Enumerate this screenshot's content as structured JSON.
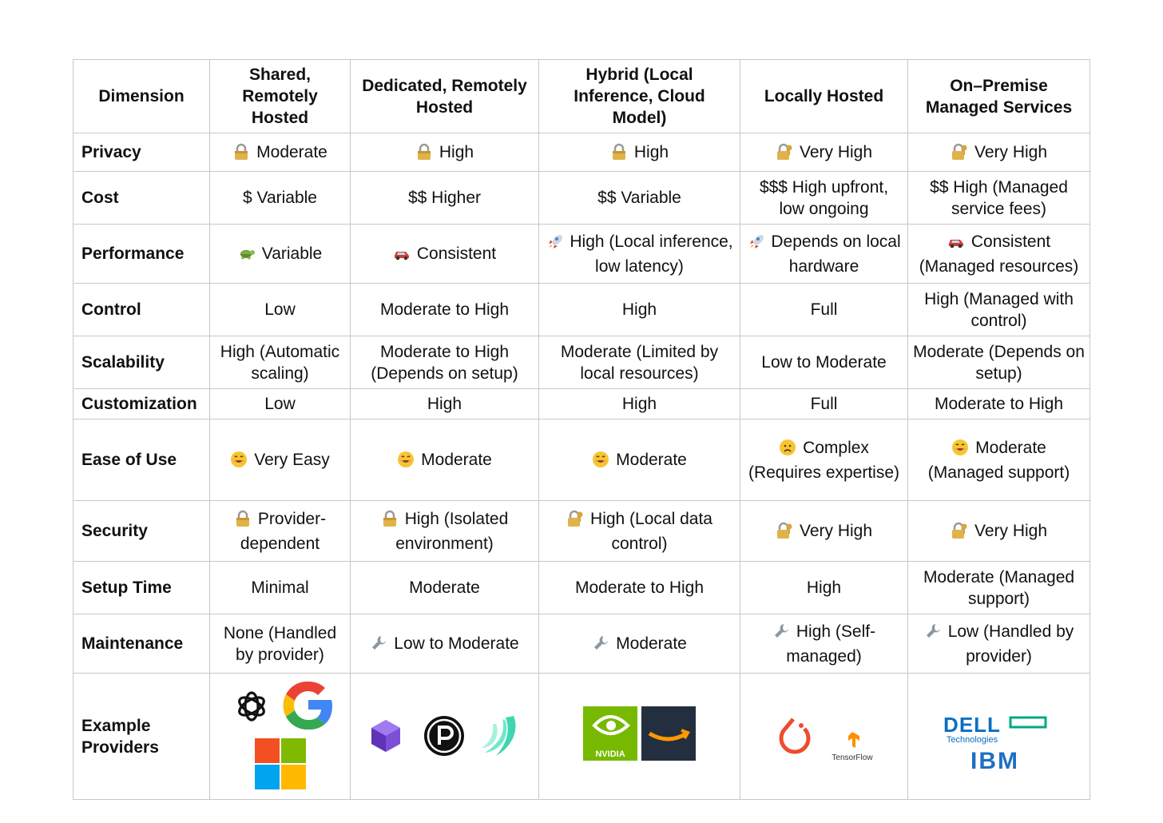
{
  "table": {
    "headers": [
      "Dimension",
      "Shared, Remotely Hosted",
      "Dedicated, Remotely Hosted",
      "Hybrid (Local Inference, Cloud Model)",
      "Locally Hosted",
      "On–Premise Managed Services"
    ],
    "rows": [
      {
        "dimension": "Privacy",
        "cells": [
          {
            "icon": "lock-icon",
            "text": "Moderate"
          },
          {
            "icon": "lock-icon",
            "text": "High"
          },
          {
            "icon": "lock-icon",
            "text": "High"
          },
          {
            "icon": "lock-with-key-icon",
            "text": "Very High"
          },
          {
            "icon": "lock-with-key-icon",
            "text": "Very High"
          }
        ]
      },
      {
        "dimension": "Cost",
        "cells": [
          {
            "icon": "",
            "text": "$ Variable"
          },
          {
            "icon": "",
            "text": "$$ Higher"
          },
          {
            "icon": "",
            "text": "$$ Variable"
          },
          {
            "icon": "",
            "text": "$$$ High upfront, low ongoing"
          },
          {
            "icon": "",
            "text": "$$ High (Managed service fees)"
          }
        ]
      },
      {
        "dimension": "Performance",
        "cells": [
          {
            "icon": "turtle-icon",
            "text": "Variable"
          },
          {
            "icon": "car-icon",
            "text": "Consistent"
          },
          {
            "icon": "rocket-icon",
            "text": "High (Local inference, low latency)"
          },
          {
            "icon": "rocket-icon",
            "text": "Depends on local hardware"
          },
          {
            "icon": "car-icon",
            "text": "Consistent (Managed resources)"
          }
        ]
      },
      {
        "dimension": "Control",
        "cells": [
          {
            "icon": "",
            "text": "Low"
          },
          {
            "icon": "",
            "text": "Moderate to High"
          },
          {
            "icon": "",
            "text": "High"
          },
          {
            "icon": "",
            "text": "Full"
          },
          {
            "icon": "",
            "text": "High (Managed with control)"
          }
        ]
      },
      {
        "dimension": "Scalability",
        "cells": [
          {
            "icon": "",
            "text": "High (Automatic scaling)"
          },
          {
            "icon": "",
            "text": "Moderate to High (Depends on setup)"
          },
          {
            "icon": "",
            "text": "Moderate (Limited by local resources)"
          },
          {
            "icon": "",
            "text": "Low to Moderate"
          },
          {
            "icon": "",
            "text": "Moderate (Depends on setup)"
          }
        ]
      },
      {
        "dimension": "Customization",
        "cells": [
          {
            "icon": "",
            "text": "Low"
          },
          {
            "icon": "",
            "text": "High"
          },
          {
            "icon": "",
            "text": "High"
          },
          {
            "icon": "",
            "text": "Full"
          },
          {
            "icon": "",
            "text": "Moderate to High"
          }
        ]
      },
      {
        "dimension": "Ease of Use",
        "cells": [
          {
            "icon": "smile-icon",
            "text": "Very Easy"
          },
          {
            "icon": "smile-icon",
            "text": "Moderate"
          },
          {
            "icon": "smile-icon",
            "text": "Moderate"
          },
          {
            "icon": "worried-face-icon",
            "text": "Complex (Requires expertise)"
          },
          {
            "icon": "smile-icon",
            "text": "Moderate (Managed support)"
          }
        ]
      },
      {
        "dimension": "Security",
        "cells": [
          {
            "icon": "lock-icon",
            "text": "Provider-dependent"
          },
          {
            "icon": "lock-icon",
            "text": "High (Isolated environment)"
          },
          {
            "icon": "lock-with-key-icon",
            "text": "High (Local data control)"
          },
          {
            "icon": "lock-with-key-icon",
            "text": "Very High"
          },
          {
            "icon": "lock-with-key-icon",
            "text": "Very High"
          }
        ]
      },
      {
        "dimension": "Setup Time",
        "cells": [
          {
            "icon": "",
            "text": "Minimal"
          },
          {
            "icon": "",
            "text": "Moderate"
          },
          {
            "icon": "",
            "text": "Moderate to High"
          },
          {
            "icon": "",
            "text": "High"
          },
          {
            "icon": "",
            "text": "Moderate (Managed support)"
          }
        ]
      },
      {
        "dimension": "Maintenance",
        "cells": [
          {
            "icon": "",
            "text": "None (Handled by provider)"
          },
          {
            "icon": "wrench-icon",
            "text": "Low to Moderate"
          },
          {
            "icon": "wrench-icon",
            "text": "Moderate"
          },
          {
            "icon": "wrench-icon",
            "text": "High (Self-managed)"
          },
          {
            "icon": "wrench-icon",
            "text": "Low (Handled by provider)"
          }
        ]
      }
    ],
    "providers": {
      "dimension": "Example Providers",
      "logos": [
        [
          "openai-logo",
          "google-logo",
          "microsoft-logo"
        ],
        [
          "cube-logo",
          "perplexity-logo",
          "banana-logo"
        ],
        [
          "nvidia-logo",
          "amazon-logo"
        ],
        [
          "pytorch-logo",
          "tensorflow-logo"
        ],
        [
          "dell-technologies-logo",
          "hpe-logo",
          "ibm-logo"
        ]
      ],
      "logo_texts": {
        "nvidia": "NVIDIA",
        "tensorflow": "TensorFlow",
        "dell": "DELL",
        "dell_sub": "Technologies",
        "ibm": "IBM"
      }
    }
  }
}
